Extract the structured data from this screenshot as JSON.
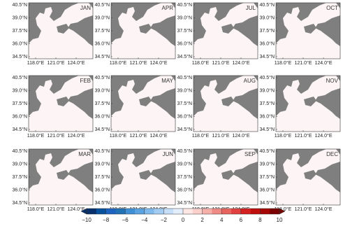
{
  "panels": [
    {
      "label": "JAN"
    },
    {
      "label": "APR"
    },
    {
      "label": "JUL"
    },
    {
      "label": "OCT"
    },
    {
      "label": "FEB"
    },
    {
      "label": "MAY"
    },
    {
      "label": "AUG"
    },
    {
      "label": "NOV"
    },
    {
      "label": "MAR"
    },
    {
      "label": "JUN"
    },
    {
      "label": "SEP"
    },
    {
      "label": "DEC"
    }
  ],
  "lat_labels": [
    "40.5°N",
    "39.0°N",
    "37.5°N",
    "36.0°N",
    "34.5°N"
  ],
  "lon_labels": [
    "118.0°E",
    "121.0°E",
    "124.0°E"
  ],
  "colorbar": {
    "range": [
      -10,
      10
    ],
    "ticks": [
      {
        "value": -10,
        "label": "−10"
      },
      {
        "value": -8,
        "label": "−8"
      },
      {
        "value": -6,
        "label": "−6"
      },
      {
        "value": -4,
        "label": "−4"
      },
      {
        "value": -2,
        "label": "−2"
      },
      0,
      2,
      4,
      6,
      8,
      10
    ],
    "colors": [
      "#08306b",
      "#08519c",
      "#1c64c0",
      "#2171b5",
      "#3f8fd6",
      "#5aa3e0",
      "#7fb8ea",
      "#a3ccf2",
      "#c6def8",
      "#e4eefb",
      "#fde8e6",
      "#fbd0cc",
      "#f6b0aa",
      "#f08a84",
      "#e8645f",
      "#e04040",
      "#d42020",
      "#c00d0d",
      "#a50606",
      "#7a0000"
    ]
  }
}
